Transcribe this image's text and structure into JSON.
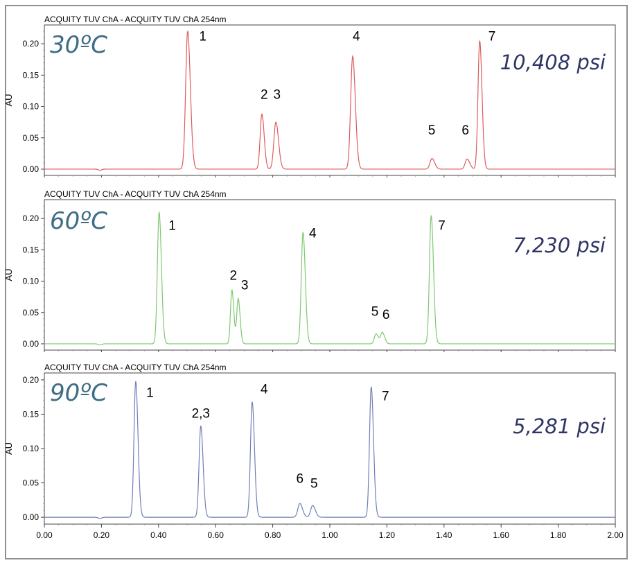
{
  "chart_data": [
    {
      "type": "line",
      "header": "ACQUITY TUV ChA - ACQUITY TUV ChA 254nm",
      "temperature": "30ºC",
      "pressure": "10,408 psi",
      "ylabel": "AU",
      "color": "#e05a5a",
      "xlim": [
        0.0,
        2.0
      ],
      "ylim": [
        -0.01,
        0.23
      ],
      "xticks": [
        "0.00",
        "0.20",
        "0.40",
        "0.60",
        "0.80",
        "1.00",
        "1.20",
        "1.40",
        "1.60",
        "1.80",
        "2.00"
      ],
      "yticks": [
        "0.00",
        "0.05",
        "0.10",
        "0.15",
        "0.20"
      ],
      "peaks": [
        {
          "t": 0.502,
          "h": 0.22,
          "w": 0.007
        },
        {
          "t": 0.762,
          "h": 0.088,
          "w": 0.006
        },
        {
          "t": 0.811,
          "h": 0.075,
          "w": 0.007
        },
        {
          "t": 1.08,
          "h": 0.18,
          "w": 0.007
        },
        {
          "t": 1.358,
          "h": 0.017,
          "w": 0.007
        },
        {
          "t": 1.481,
          "h": 0.016,
          "w": 0.007
        },
        {
          "t": 1.525,
          "h": 0.205,
          "w": 0.006
        }
      ],
      "labels": [
        {
          "text": "1",
          "t": 0.555,
          "y": 0.205
        },
        {
          "text": "2",
          "t": 0.77,
          "y": 0.112
        },
        {
          "text": "3",
          "t": 0.815,
          "y": 0.112
        },
        {
          "text": "4",
          "t": 1.093,
          "y": 0.205
        },
        {
          "text": "5",
          "t": 1.357,
          "y": 0.055
        },
        {
          "text": "6",
          "t": 1.475,
          "y": 0.055
        },
        {
          "text": "7",
          "t": 1.568,
          "y": 0.205
        }
      ]
    },
    {
      "type": "line",
      "header": "ACQUITY TUV ChA - ACQUITY TUV ChA 254nm",
      "temperature": "60ºC",
      "pressure": "7,230 psi",
      "ylabel": "AU",
      "color": "#7dc96f",
      "xlim": [
        0.0,
        2.0
      ],
      "ylim": [
        -0.01,
        0.23
      ],
      "xticks": [
        "0.00",
        "0.20",
        "0.40",
        "0.60",
        "0.80",
        "1.00",
        "1.20",
        "1.40",
        "1.60",
        "1.80",
        "2.00"
      ],
      "yticks": [
        "0.00",
        "0.05",
        "0.10",
        "0.15",
        "0.20"
      ],
      "peaks": [
        {
          "t": 0.402,
          "h": 0.21,
          "w": 0.006
        },
        {
          "t": 0.657,
          "h": 0.086,
          "w": 0.005
        },
        {
          "t": 0.679,
          "h": 0.072,
          "w": 0.005
        },
        {
          "t": 0.906,
          "h": 0.178,
          "w": 0.006
        },
        {
          "t": 1.162,
          "h": 0.016,
          "w": 0.006
        },
        {
          "t": 1.184,
          "h": 0.018,
          "w": 0.006
        },
        {
          "t": 1.355,
          "h": 0.205,
          "w": 0.006
        }
      ],
      "labels": [
        {
          "text": "1",
          "t": 0.448,
          "y": 0.182
        },
        {
          "text": "2",
          "t": 0.662,
          "y": 0.102
        },
        {
          "text": "3",
          "t": 0.702,
          "y": 0.087
        },
        {
          "text": "4",
          "t": 0.94,
          "y": 0.17
        },
        {
          "text": "5",
          "t": 1.158,
          "y": 0.045
        },
        {
          "text": "6",
          "t": 1.197,
          "y": 0.04
        },
        {
          "text": "7",
          "t": 1.392,
          "y": 0.182
        }
      ]
    },
    {
      "type": "line",
      "header": "ACQUITY TUV ChA - ACQUITY TUV ChA 254nm",
      "temperature": "90ºC",
      "pressure": "5,281 psi",
      "ylabel": "AU",
      "color": "#6f7fb8",
      "xlim": [
        0.0,
        2.0
      ],
      "ylim": [
        -0.01,
        0.21
      ],
      "xticks": [
        "0.00",
        "0.20",
        "0.40",
        "0.60",
        "0.80",
        "1.00",
        "1.20",
        "1.40",
        "1.60",
        "1.80",
        "2.00"
      ],
      "yticks": [
        "0.00",
        "0.05",
        "0.10",
        "0.15",
        "0.20"
      ],
      "peaks": [
        {
          "t": 0.32,
          "h": 0.198,
          "w": 0.006
        },
        {
          "t": 0.548,
          "h": 0.133,
          "w": 0.006
        },
        {
          "t": 0.728,
          "h": 0.168,
          "w": 0.006
        },
        {
          "t": 0.895,
          "h": 0.02,
          "w": 0.007
        },
        {
          "t": 0.94,
          "h": 0.017,
          "w": 0.007
        },
        {
          "t": 1.145,
          "h": 0.19,
          "w": 0.006
        }
      ],
      "labels": [
        {
          "text": "1",
          "t": 0.37,
          "y": 0.175
        },
        {
          "text": "2,3",
          "t": 0.548,
          "y": 0.145
        },
        {
          "text": "4",
          "t": 0.77,
          "y": 0.18
        },
        {
          "text": "6",
          "t": 0.895,
          "y": 0.05
        },
        {
          "text": "5",
          "t": 0.945,
          "y": 0.043
        },
        {
          "text": "7",
          "t": 1.195,
          "y": 0.17
        }
      ]
    }
  ]
}
